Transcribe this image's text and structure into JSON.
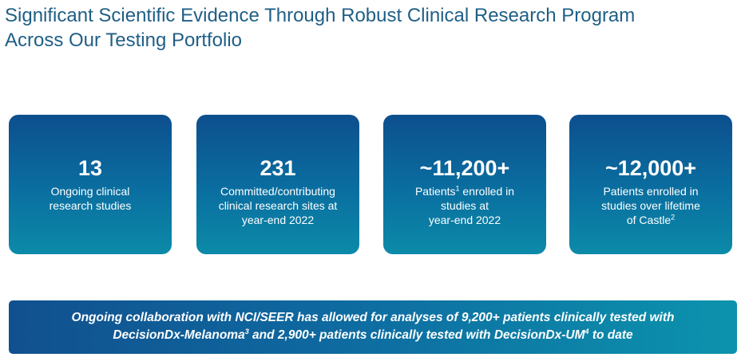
{
  "title": {
    "line1": "Significant Scientific Evidence Through Robust Clinical Research Program",
    "line2": "Across Our Testing Portfolio"
  },
  "cards": [
    {
      "value": "13",
      "lines": [
        "Ongoing clinical",
        "research studies"
      ]
    },
    {
      "value": "231",
      "lines": [
        "Committed/contributing",
        "clinical research sites at",
        "year-end 2022"
      ]
    },
    {
      "value": "~11,200+",
      "line1_pre": "Patients",
      "line1_sup": "1",
      "line1_post": " enrolled in",
      "lines_rest": [
        "studies at",
        "year-end 2022"
      ]
    },
    {
      "value": "~12,000+",
      "lines": [
        "Patients enrolled in",
        "studies over lifetime"
      ],
      "line3_pre": "of Castle",
      "line3_sup": "2"
    }
  ],
  "banner": {
    "line1": "Ongoing collaboration with NCI/SEER has allowed for analyses of 9,200+ patients clinically tested with",
    "line2_a": "DecisionDx-Melanoma",
    "line2_sup_a": "3",
    "line2_b": " and 2,900+ patients clinically tested with DecisionDx-UM",
    "line2_sup_b": "4",
    "line2_c": " to date"
  },
  "colors": {
    "title": "#1f5f86",
    "card_top": "#0d4f8e",
    "card_bottom": "#0c8aa8",
    "banner_left": "#11508f",
    "banner_right": "#0c93ad"
  }
}
